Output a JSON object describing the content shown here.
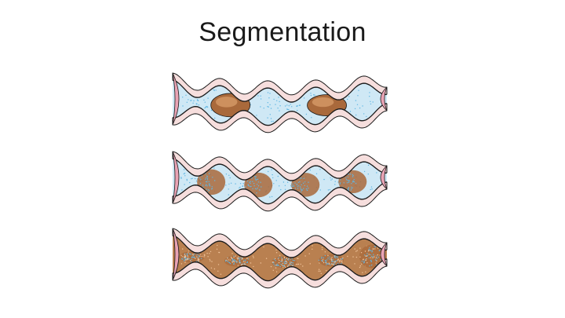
{
  "slide": {
    "title": "Segmentation"
  },
  "figure": {
    "panels": [
      {
        "name": "segmentation-panel-discrete-boluses",
        "description_icon": "intestine-segment-icon"
      },
      {
        "name": "segmentation-panel-shifting-boluses",
        "description_icon": "intestine-segment-icon"
      },
      {
        "name": "segmentation-panel-mixed-chyme",
        "description_icon": "intestine-segment-icon"
      }
    ],
    "colors": {
      "intestinal_wall": "#f6dedd",
      "wall_outline": "#1a1a1a",
      "wall_inner_pink": "#e9a3b4",
      "lumen_fluid": "#cfe8f5",
      "fluid_dots": "#5fb6e3",
      "chyme_brown": "#a9693b",
      "chyme_highlight": "#d69a68",
      "chyme_dots": "#f0c39a"
    }
  }
}
